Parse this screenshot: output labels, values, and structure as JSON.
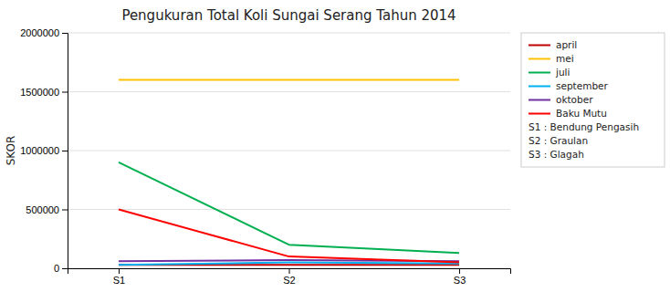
{
  "chart_data": {
    "type": "line",
    "title": "Pengukuran Total Koli Sungai Serang Tahun 2014",
    "ylabel": "SKOR",
    "categories": [
      "S1",
      "S2",
      "S3"
    ],
    "series": [
      {
        "name": "april",
        "color": "#c00000",
        "values": [
          30000,
          30000,
          30000
        ]
      },
      {
        "name": "mei",
        "color": "#ffc000",
        "values": [
          1600000,
          1600000,
          1600000
        ]
      },
      {
        "name": "juli",
        "color": "#00b050",
        "values": [
          900000,
          200000,
          130000
        ]
      },
      {
        "name": "september",
        "color": "#00b0f0",
        "values": [
          30000,
          50000,
          40000
        ]
      },
      {
        "name": "oktober",
        "color": "#7030a0",
        "values": [
          60000,
          70000,
          60000
        ]
      },
      {
        "name": "Baku Mutu",
        "color": "#ff0000",
        "values": [
          500000,
          100000,
          50000
        ]
      }
    ],
    "annotations": [
      "S1 : Bendung Pengasih",
      "S2 : Graulan",
      "S3 : Glagah"
    ],
    "ylim": [
      0,
      2000000
    ],
    "yticks": [
      0,
      500000,
      1000000,
      1500000,
      2000000
    ],
    "grid": true,
    "legend": "right"
  }
}
